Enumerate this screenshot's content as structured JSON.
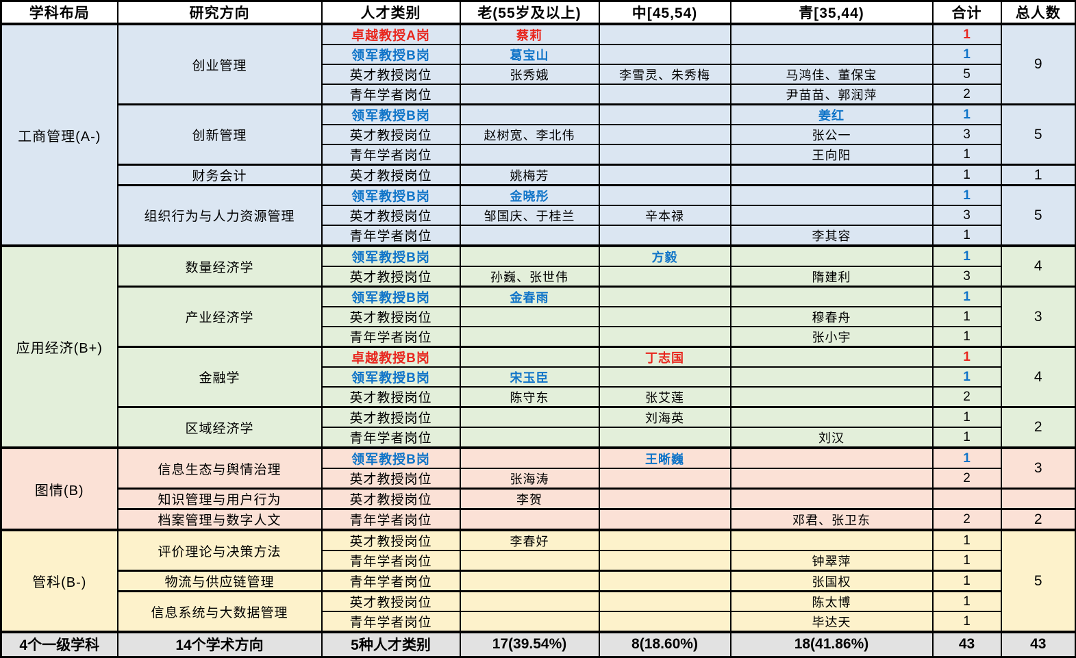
{
  "table": {
    "columns": [
      "学科布局",
      "研究方向",
      "人才类别",
      "老(55岁及以上)",
      "中[45,54)",
      "青[35,44)",
      "合计",
      "总人数"
    ],
    "colors": {
      "emphasis_red": "#e8261d",
      "emphasis_blue": "#0f74c8",
      "section_business_bg": "#dbe6f2",
      "section_economics_bg": "#e3efda",
      "section_library_bg": "#fbe1d6",
      "section_management_bg": "#fdf2cb",
      "footer_bg": "#e2e2e2",
      "header_bg": "#ffffff",
      "grid": "#000000"
    },
    "sections": [
      {
        "name": "工商管理(A-)",
        "bg": "#dbe6f2",
        "directions": [
          {
            "name": "创业管理",
            "people_total": "9",
            "rows": [
              {
                "category": "卓越教授A岗",
                "em": "red",
                "old": "蔡莉",
                "mid": "",
                "young": "",
                "sum": "1"
              },
              {
                "category": "领军教授B岗",
                "em": "blue",
                "old": "葛宝山",
                "mid": "",
                "young": "",
                "sum": "1"
              },
              {
                "category": "英才教授岗位",
                "old": "张秀娥",
                "mid": "李雪灵、朱秀梅",
                "young": "马鸿佳、董保宝",
                "sum": "5"
              },
              {
                "category": "青年学者岗位",
                "old": "",
                "mid": "",
                "young": "尹苗苗、郭润萍",
                "sum": "2"
              }
            ]
          },
          {
            "name": "创新管理",
            "people_total": "5",
            "rows": [
              {
                "category": "领军教授B岗",
                "em": "blue",
                "old": "",
                "mid": "",
                "young": "姜红",
                "sum": "1"
              },
              {
                "category": "英才教授岗位",
                "old": "赵树宽、李北伟",
                "mid": "",
                "young": "张公一",
                "sum": "3"
              },
              {
                "category": "青年学者岗位",
                "old": "",
                "mid": "",
                "young": "王向阳",
                "sum": "1"
              }
            ]
          },
          {
            "name": "财务会计",
            "people_total": "1",
            "rows": [
              {
                "category": "英才教授岗位",
                "old": "姚梅芳",
                "mid": "",
                "young": "",
                "sum": "1"
              }
            ]
          },
          {
            "name": "组织行为与人力资源管理",
            "people_total": "5",
            "rows": [
              {
                "category": "领军教授B岗",
                "em": "blue",
                "old": "金晓彤",
                "mid": "",
                "young": "",
                "sum": "1"
              },
              {
                "category": "英才教授岗位",
                "old": "邹国庆、于桂兰",
                "mid": "辛本禄",
                "young": "",
                "sum": "3"
              },
              {
                "category": "青年学者岗位",
                "old": "",
                "mid": "",
                "young": "李其容",
                "sum": "1"
              }
            ]
          }
        ]
      },
      {
        "name": "应用经济(B+)",
        "bg": "#e3efda",
        "directions": [
          {
            "name": "数量经济学",
            "people_total": "4",
            "rows": [
              {
                "category": "领军教授B岗",
                "em": "blue",
                "old": "",
                "mid": "方毅",
                "young": "",
                "sum": "1"
              },
              {
                "category": "英才教授岗位",
                "old": "孙巍、张世伟",
                "mid": "",
                "young": "隋建利",
                "sum": "3"
              }
            ]
          },
          {
            "name": "产业经济学",
            "people_total": "3",
            "rows": [
              {
                "category": "领军教授B岗",
                "em": "blue",
                "old": "金春雨",
                "mid": "",
                "young": "",
                "sum": "1"
              },
              {
                "category": "英才教授岗位",
                "old": "",
                "mid": "",
                "young": "穆春舟",
                "sum": "1"
              },
              {
                "category": "青年学者岗位",
                "old": "",
                "mid": "",
                "young": "张小宇",
                "sum": "1"
              }
            ]
          },
          {
            "name": "金融学",
            "people_total": "4",
            "rows": [
              {
                "category": "卓越教授B岗",
                "em": "red",
                "old": "",
                "mid": "丁志国",
                "young": "",
                "sum": "1"
              },
              {
                "category": "领军教授B岗",
                "em": "blue",
                "old": "宋玉臣",
                "mid": "",
                "young": "",
                "sum": "1"
              },
              {
                "category": "英才教授岗位",
                "old": "陈守东",
                "mid": "张艾莲",
                "young": "",
                "sum": "2"
              }
            ]
          },
          {
            "name": "区域经济学",
            "people_total": "2",
            "rows": [
              {
                "category": "英才教授岗位",
                "old": "",
                "mid": "刘海英",
                "young": "",
                "sum": "1"
              },
              {
                "category": "青年学者岗位",
                "old": "",
                "mid": "",
                "young": "刘汉",
                "sum": "1"
              }
            ]
          }
        ]
      },
      {
        "name": "图情(B)",
        "bg": "#fbe1d6",
        "directions": [
          {
            "name": "信息生态与舆情治理",
            "people_total": "3",
            "rows": [
              {
                "category": "领军教授B岗",
                "em": "blue",
                "old": "",
                "mid": "王晰巍",
                "young": "",
                "sum": "1"
              },
              {
                "category": "英才教授岗位",
                "old": "张海涛",
                "mid": "",
                "young": "",
                "sum": "2"
              }
            ]
          },
          {
            "name": "知识管理与用户行为",
            "people_total": "",
            "rows": [
              {
                "category": "英才教授岗位",
                "old": "李贺",
                "mid": "",
                "young": "",
                "sum": ""
              }
            ]
          },
          {
            "name": "档案管理与数字人文",
            "people_total": "2",
            "rows": [
              {
                "category": "青年学者岗位",
                "old": "",
                "mid": "",
                "young": "邓君、张卫东",
                "sum": "2"
              }
            ]
          }
        ]
      },
      {
        "name": "管科(B-)",
        "bg": "#fdf2cb",
        "people_total": "5",
        "directions": [
          {
            "name": "评价理论与决策方法",
            "rows": [
              {
                "category": "英才教授岗位",
                "old": "李春好",
                "mid": "",
                "young": "",
                "sum": "1"
              },
              {
                "category": "青年学者岗位",
                "old": "",
                "mid": "",
                "young": "钟翠萍",
                "sum": "1"
              }
            ]
          },
          {
            "name": "物流与供应链管理",
            "rows": [
              {
                "category": "青年学者岗位",
                "old": "",
                "mid": "",
                "young": "张国权",
                "sum": "1"
              }
            ]
          },
          {
            "name": "信息系统与大数据管理",
            "rows": [
              {
                "category": "英才教授岗位",
                "old": "",
                "mid": "",
                "young": "陈太博",
                "sum": "1"
              },
              {
                "category": "青年学者岗位",
                "old": "",
                "mid": "",
                "young": "毕达天",
                "sum": "1"
              }
            ]
          }
        ]
      }
    ],
    "footer": [
      "4个一级学科",
      "14个学术方向",
      "5种人才类别",
      "17(39.54%)",
      "8(18.60%)",
      "18(41.86%)",
      "43",
      "43"
    ]
  }
}
